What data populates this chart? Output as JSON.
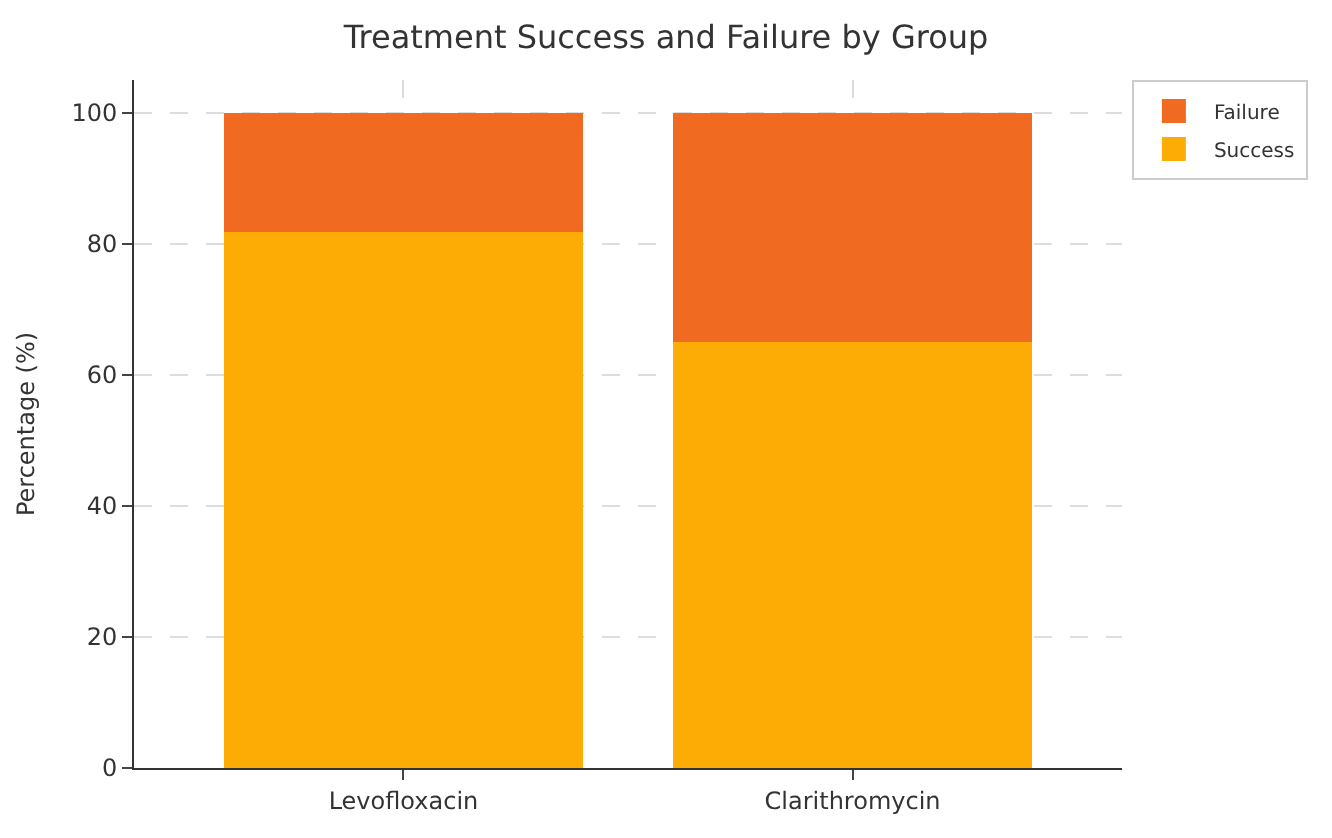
{
  "chart_data": {
    "type": "bar",
    "title": "Treatment Success and Failure by Group",
    "ylabel": "Percentage (%)",
    "categories": [
      "Levofloxacin",
      "Clarithromycin"
    ],
    "stacked": true,
    "series": [
      {
        "name": "Success",
        "color": "#fcac04",
        "values": [
          81.8,
          65
        ]
      },
      {
        "name": "Failure",
        "color": "#f06a22",
        "values": [
          18.2,
          35
        ]
      }
    ],
    "ylim": [
      0,
      105
    ],
    "yticks": [
      0,
      20,
      40,
      60,
      80,
      100
    ],
    "grid": true,
    "legend": "top right"
  }
}
